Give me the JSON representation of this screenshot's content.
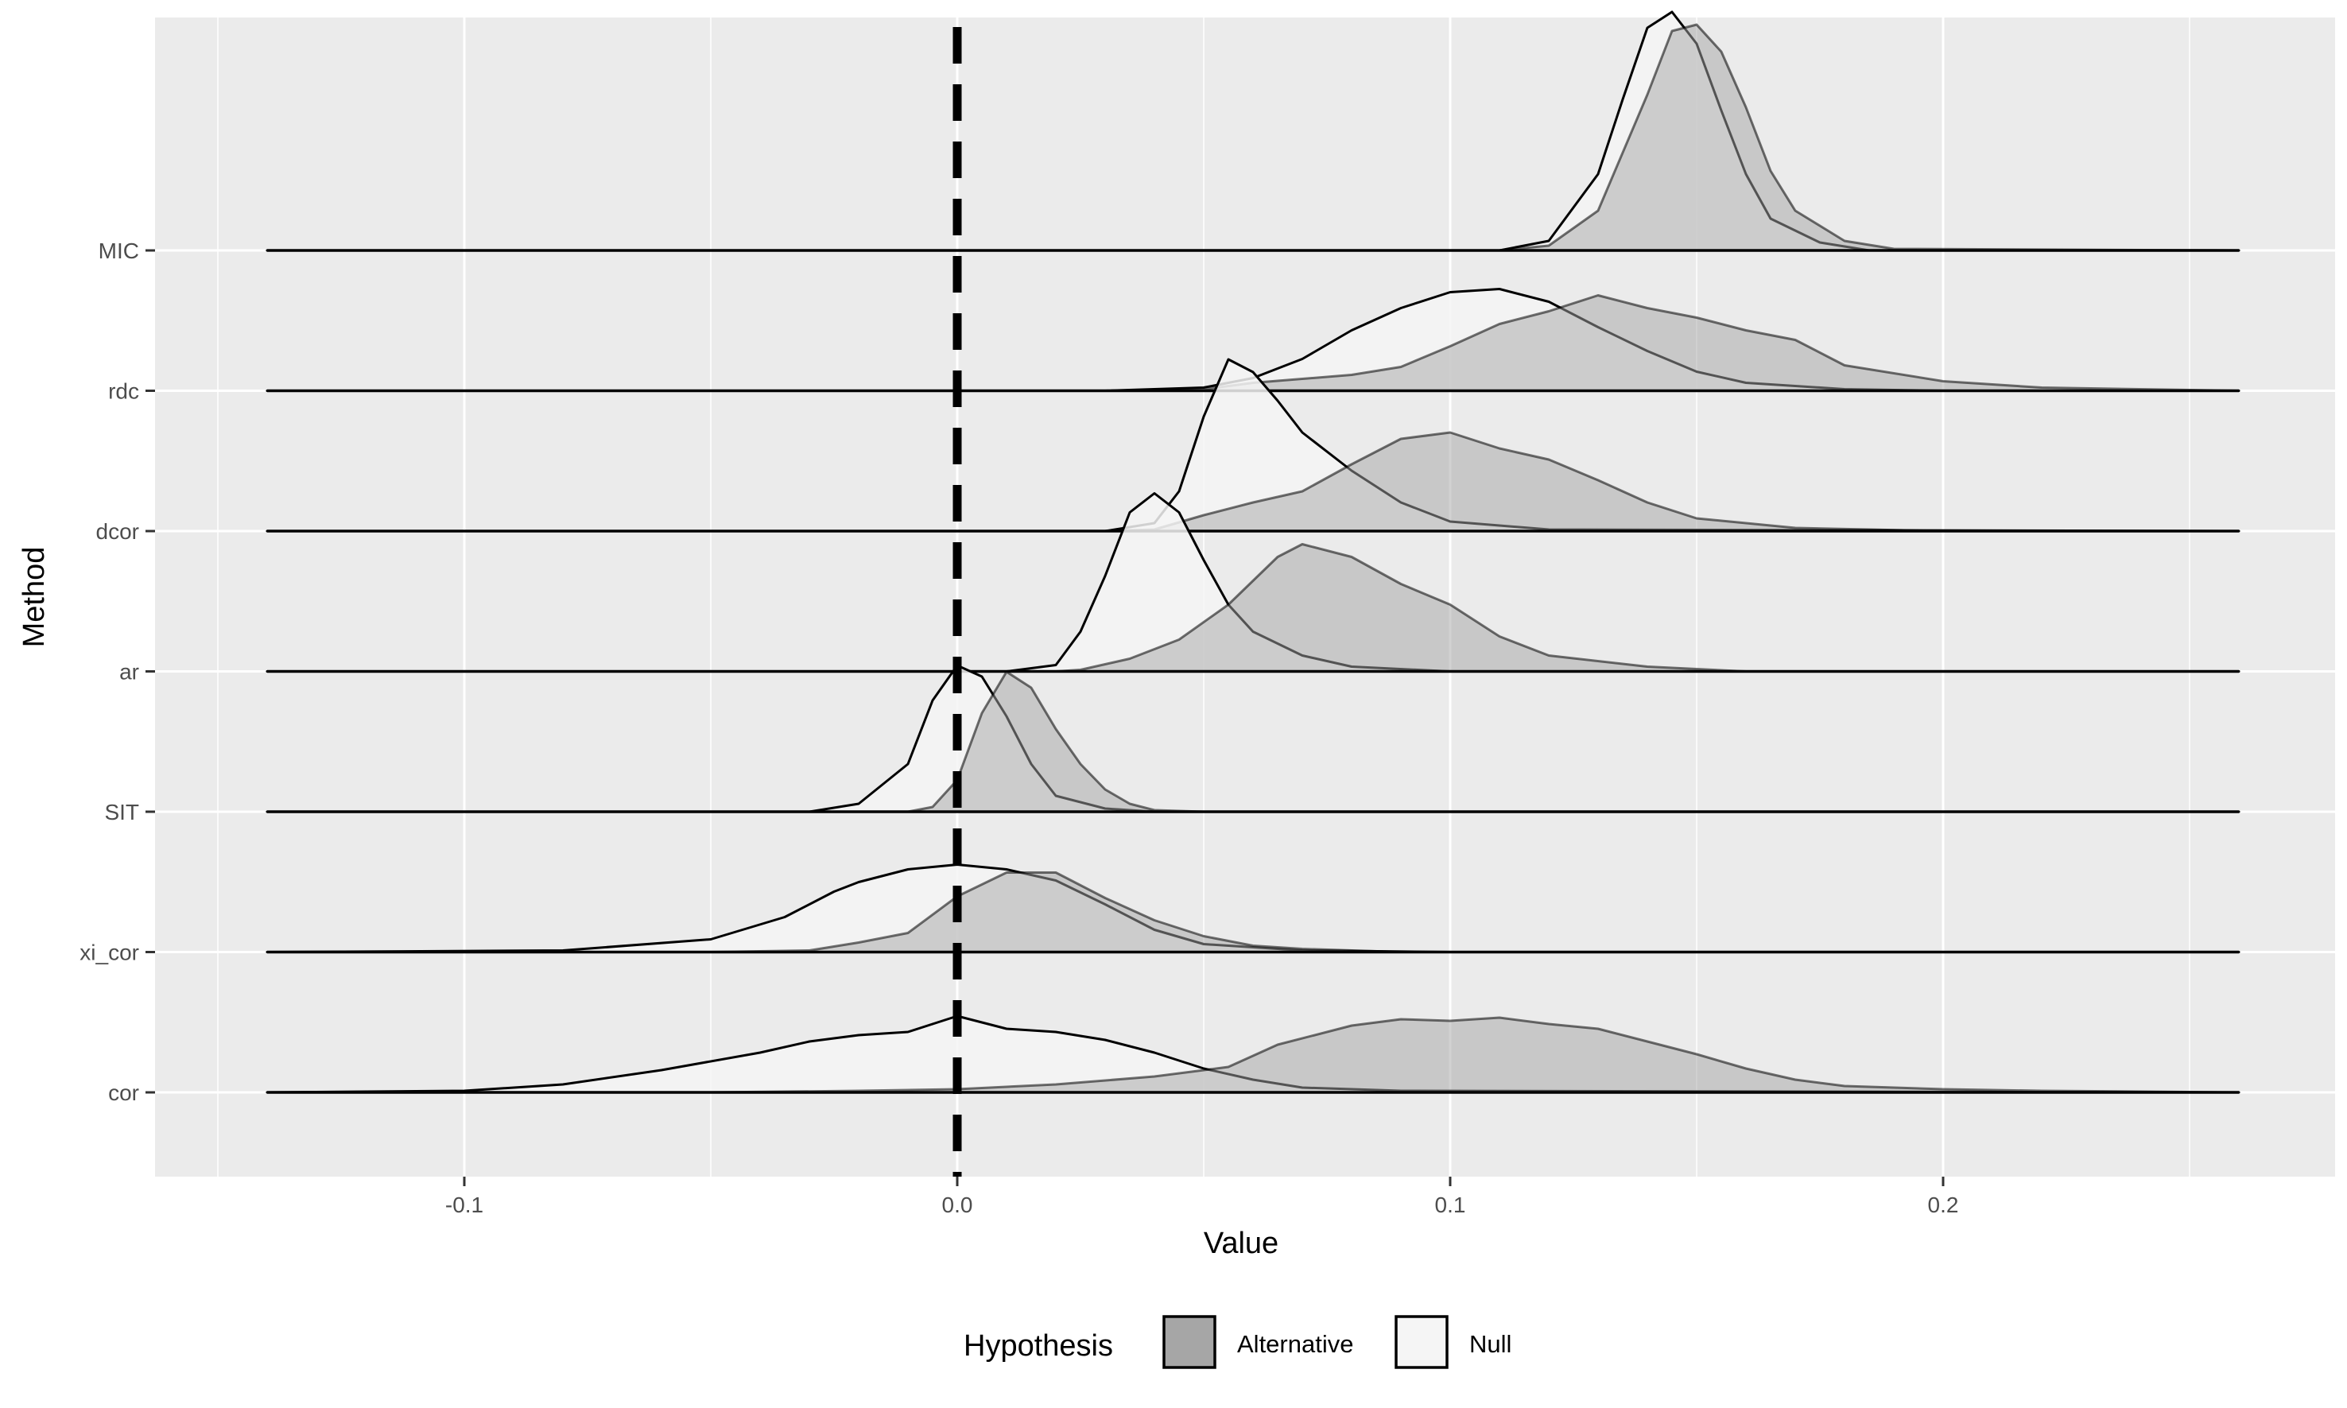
{
  "chart_data": {
    "type": "ridgeline",
    "title": "",
    "xlabel": "Value",
    "ylabel": "Method",
    "xlim": [
      -0.15,
      0.26
    ],
    "x_ticks": [
      -0.1,
      0.0,
      0.1,
      0.2
    ],
    "x_tick_labels": [
      "-0.1",
      "0.0",
      "0.1",
      "0.2"
    ],
    "grid": true,
    "reference_line": {
      "x": 0.0,
      "style": "dashed"
    },
    "categories": [
      "cor",
      "xi_cor",
      "SIT",
      "ar",
      "dcor",
      "rdc",
      "MIC"
    ],
    "legend": {
      "title": "Hypothesis",
      "position": "bottom",
      "entries": [
        {
          "label": "Alternative",
          "color": "#a6a6a6"
        },
        {
          "label": "Null",
          "color": "#f5f5f5"
        }
      ]
    },
    "series": [
      {
        "name": "Alternative",
        "color": "#a6a6a6",
        "ridges": [
          {
            "method": "cor",
            "points": [
              [
                -0.14,
                0
              ],
              [
                -0.05,
                0
              ],
              [
                -0.02,
                0.01
              ],
              [
                0,
                0.02
              ],
              [
                0.02,
                0.05
              ],
              [
                0.04,
                0.1
              ],
              [
                0.055,
                0.16
              ],
              [
                0.065,
                0.3
              ],
              [
                0.08,
                0.42
              ],
              [
                0.09,
                0.46
              ],
              [
                0.1,
                0.45
              ],
              [
                0.11,
                0.47
              ],
              [
                0.12,
                0.43
              ],
              [
                0.13,
                0.4
              ],
              [
                0.14,
                0.32
              ],
              [
                0.15,
                0.24
              ],
              [
                0.16,
                0.15
              ],
              [
                0.17,
                0.08
              ],
              [
                0.18,
                0.04
              ],
              [
                0.2,
                0.02
              ],
              [
                0.22,
                0.01
              ],
              [
                0.26,
                0
              ]
            ]
          },
          {
            "method": "xi_cor",
            "points": [
              [
                -0.14,
                0
              ],
              [
                -0.05,
                0
              ],
              [
                -0.03,
                0.01
              ],
              [
                -0.02,
                0.06
              ],
              [
                -0.01,
                0.12
              ],
              [
                0,
                0.35
              ],
              [
                0.01,
                0.5
              ],
              [
                0.02,
                0.5
              ],
              [
                0.03,
                0.34
              ],
              [
                0.04,
                0.2
              ],
              [
                0.05,
                0.1
              ],
              [
                0.06,
                0.04
              ],
              [
                0.07,
                0.02
              ],
              [
                0.09,
                0
              ],
              [
                0.26,
                0
              ]
            ]
          },
          {
            "method": "SIT",
            "points": [
              [
                -0.14,
                0
              ],
              [
                -0.01,
                0
              ],
              [
                -0.005,
                0.03
              ],
              [
                0,
                0.2
              ],
              [
                0.005,
                0.62
              ],
              [
                0.01,
                0.88
              ],
              [
                0.015,
                0.78
              ],
              [
                0.02,
                0.52
              ],
              [
                0.025,
                0.3
              ],
              [
                0.03,
                0.14
              ],
              [
                0.035,
                0.05
              ],
              [
                0.04,
                0.01
              ],
              [
                0.05,
                0
              ],
              [
                0.26,
                0
              ]
            ]
          },
          {
            "method": "ar",
            "points": [
              [
                -0.14,
                0
              ],
              [
                0.02,
                0
              ],
              [
                0.025,
                0.01
              ],
              [
                0.035,
                0.08
              ],
              [
                0.045,
                0.2
              ],
              [
                0.055,
                0.42
              ],
              [
                0.065,
                0.72
              ],
              [
                0.07,
                0.8
              ],
              [
                0.08,
                0.72
              ],
              [
                0.09,
                0.55
              ],
              [
                0.1,
                0.42
              ],
              [
                0.11,
                0.22
              ],
              [
                0.12,
                0.1
              ],
              [
                0.14,
                0.03
              ],
              [
                0.16,
                0
              ],
              [
                0.26,
                0
              ]
            ]
          },
          {
            "method": "dcor",
            "points": [
              [
                -0.14,
                0
              ],
              [
                0.03,
                0
              ],
              [
                0.04,
                0.01
              ],
              [
                0.05,
                0.1
              ],
              [
                0.06,
                0.18
              ],
              [
                0.07,
                0.25
              ],
              [
                0.08,
                0.42
              ],
              [
                0.09,
                0.58
              ],
              [
                0.1,
                0.62
              ],
              [
                0.11,
                0.52
              ],
              [
                0.12,
                0.45
              ],
              [
                0.13,
                0.32
              ],
              [
                0.14,
                0.18
              ],
              [
                0.15,
                0.08
              ],
              [
                0.17,
                0.02
              ],
              [
                0.2,
                0
              ],
              [
                0.26,
                0
              ]
            ]
          },
          {
            "method": "rdc",
            "points": [
              [
                -0.14,
                0
              ],
              [
                0.04,
                0
              ],
              [
                0.05,
                0.01
              ],
              [
                0.06,
                0.05
              ],
              [
                0.08,
                0.1
              ],
              [
                0.09,
                0.15
              ],
              [
                0.1,
                0.28
              ],
              [
                0.11,
                0.42
              ],
              [
                0.12,
                0.5
              ],
              [
                0.13,
                0.6
              ],
              [
                0.14,
                0.52
              ],
              [
                0.15,
                0.46
              ],
              [
                0.16,
                0.38
              ],
              [
                0.17,
                0.32
              ],
              [
                0.18,
                0.16
              ],
              [
                0.2,
                0.06
              ],
              [
                0.22,
                0.02
              ],
              [
                0.26,
                0
              ]
            ]
          },
          {
            "method": "MIC",
            "points": [
              [
                -0.14,
                0
              ],
              [
                0.11,
                0
              ],
              [
                0.12,
                0.03
              ],
              [
                0.13,
                0.25
              ],
              [
                0.14,
                0.98
              ],
              [
                0.145,
                1.38
              ],
              [
                0.15,
                1.42
              ],
              [
                0.155,
                1.25
              ],
              [
                0.16,
                0.9
              ],
              [
                0.165,
                0.5
              ],
              [
                0.17,
                0.25
              ],
              [
                0.18,
                0.06
              ],
              [
                0.19,
                0.01
              ],
              [
                0.26,
                0
              ]
            ]
          }
        ]
      },
      {
        "name": "Null",
        "color": "#f5f5f5",
        "ridges": [
          {
            "method": "cor",
            "points": [
              [
                -0.14,
                0
              ],
              [
                -0.1,
                0.01
              ],
              [
                -0.08,
                0.05
              ],
              [
                -0.06,
                0.14
              ],
              [
                -0.04,
                0.25
              ],
              [
                -0.03,
                0.32
              ],
              [
                -0.02,
                0.36
              ],
              [
                -0.01,
                0.38
              ],
              [
                0,
                0.48
              ],
              [
                0.01,
                0.4
              ],
              [
                0.02,
                0.38
              ],
              [
                0.03,
                0.33
              ],
              [
                0.04,
                0.25
              ],
              [
                0.05,
                0.15
              ],
              [
                0.06,
                0.08
              ],
              [
                0.07,
                0.03
              ],
              [
                0.09,
                0.01
              ],
              [
                0.26,
                0
              ]
            ]
          },
          {
            "method": "xi_cor",
            "points": [
              [
                -0.14,
                0
              ],
              [
                -0.08,
                0.01
              ],
              [
                -0.05,
                0.08
              ],
              [
                -0.035,
                0.22
              ],
              [
                -0.025,
                0.38
              ],
              [
                -0.02,
                0.44
              ],
              [
                -0.01,
                0.52
              ],
              [
                0,
                0.55
              ],
              [
                0.01,
                0.52
              ],
              [
                0.02,
                0.45
              ],
              [
                0.03,
                0.3
              ],
              [
                0.04,
                0.14
              ],
              [
                0.05,
                0.05
              ],
              [
                0.07,
                0.01
              ],
              [
                0.1,
                0
              ],
              [
                0.26,
                0
              ]
            ]
          },
          {
            "method": "SIT",
            "points": [
              [
                -0.14,
                0
              ],
              [
                -0.03,
                0
              ],
              [
                -0.02,
                0.05
              ],
              [
                -0.01,
                0.3
              ],
              [
                -0.005,
                0.7
              ],
              [
                0,
                0.92
              ],
              [
                0.005,
                0.85
              ],
              [
                0.01,
                0.6
              ],
              [
                0.015,
                0.3
              ],
              [
                0.02,
                0.1
              ],
              [
                0.03,
                0.02
              ],
              [
                0.04,
                0
              ],
              [
                0.26,
                0
              ]
            ]
          },
          {
            "method": "ar",
            "points": [
              [
                -0.14,
                0
              ],
              [
                0.01,
                0
              ],
              [
                0.02,
                0.04
              ],
              [
                0.025,
                0.25
              ],
              [
                0.03,
                0.6
              ],
              [
                0.035,
                1.0
              ],
              [
                0.04,
                1.12
              ],
              [
                0.045,
                1.0
              ],
              [
                0.05,
                0.7
              ],
              [
                0.055,
                0.42
              ],
              [
                0.06,
                0.25
              ],
              [
                0.07,
                0.1
              ],
              [
                0.08,
                0.03
              ],
              [
                0.1,
                0
              ],
              [
                0.26,
                0
              ]
            ]
          },
          {
            "method": "dcor",
            "points": [
              [
                -0.14,
                0
              ],
              [
                0.03,
                0
              ],
              [
                0.04,
                0.05
              ],
              [
                0.045,
                0.25
              ],
              [
                0.05,
                0.72
              ],
              [
                0.055,
                1.08
              ],
              [
                0.06,
                1.0
              ],
              [
                0.065,
                0.82
              ],
              [
                0.07,
                0.62
              ],
              [
                0.08,
                0.38
              ],
              [
                0.09,
                0.18
              ],
              [
                0.1,
                0.06
              ],
              [
                0.12,
                0.01
              ],
              [
                0.26,
                0
              ]
            ]
          },
          {
            "method": "rdc",
            "points": [
              [
                -0.14,
                0
              ],
              [
                0.03,
                0
              ],
              [
                0.05,
                0.02
              ],
              [
                0.06,
                0.08
              ],
              [
                0.07,
                0.2
              ],
              [
                0.08,
                0.38
              ],
              [
                0.09,
                0.52
              ],
              [
                0.1,
                0.62
              ],
              [
                0.11,
                0.64
              ],
              [
                0.12,
                0.56
              ],
              [
                0.13,
                0.4
              ],
              [
                0.14,
                0.25
              ],
              [
                0.15,
                0.12
              ],
              [
                0.16,
                0.05
              ],
              [
                0.18,
                0.01
              ],
              [
                0.2,
                0
              ],
              [
                0.26,
                0
              ]
            ]
          },
          {
            "method": "MIC",
            "points": [
              [
                -0.14,
                0
              ],
              [
                0.11,
                0
              ],
              [
                0.12,
                0.06
              ],
              [
                0.13,
                0.48
              ],
              [
                0.135,
                0.95
              ],
              [
                0.14,
                1.4
              ],
              [
                0.145,
                1.5
              ],
              [
                0.15,
                1.3
              ],
              [
                0.155,
                0.88
              ],
              [
                0.16,
                0.48
              ],
              [
                0.165,
                0.2
              ],
              [
                0.175,
                0.05
              ],
              [
                0.185,
                0
              ],
              [
                0.26,
                0
              ]
            ]
          }
        ]
      }
    ]
  }
}
